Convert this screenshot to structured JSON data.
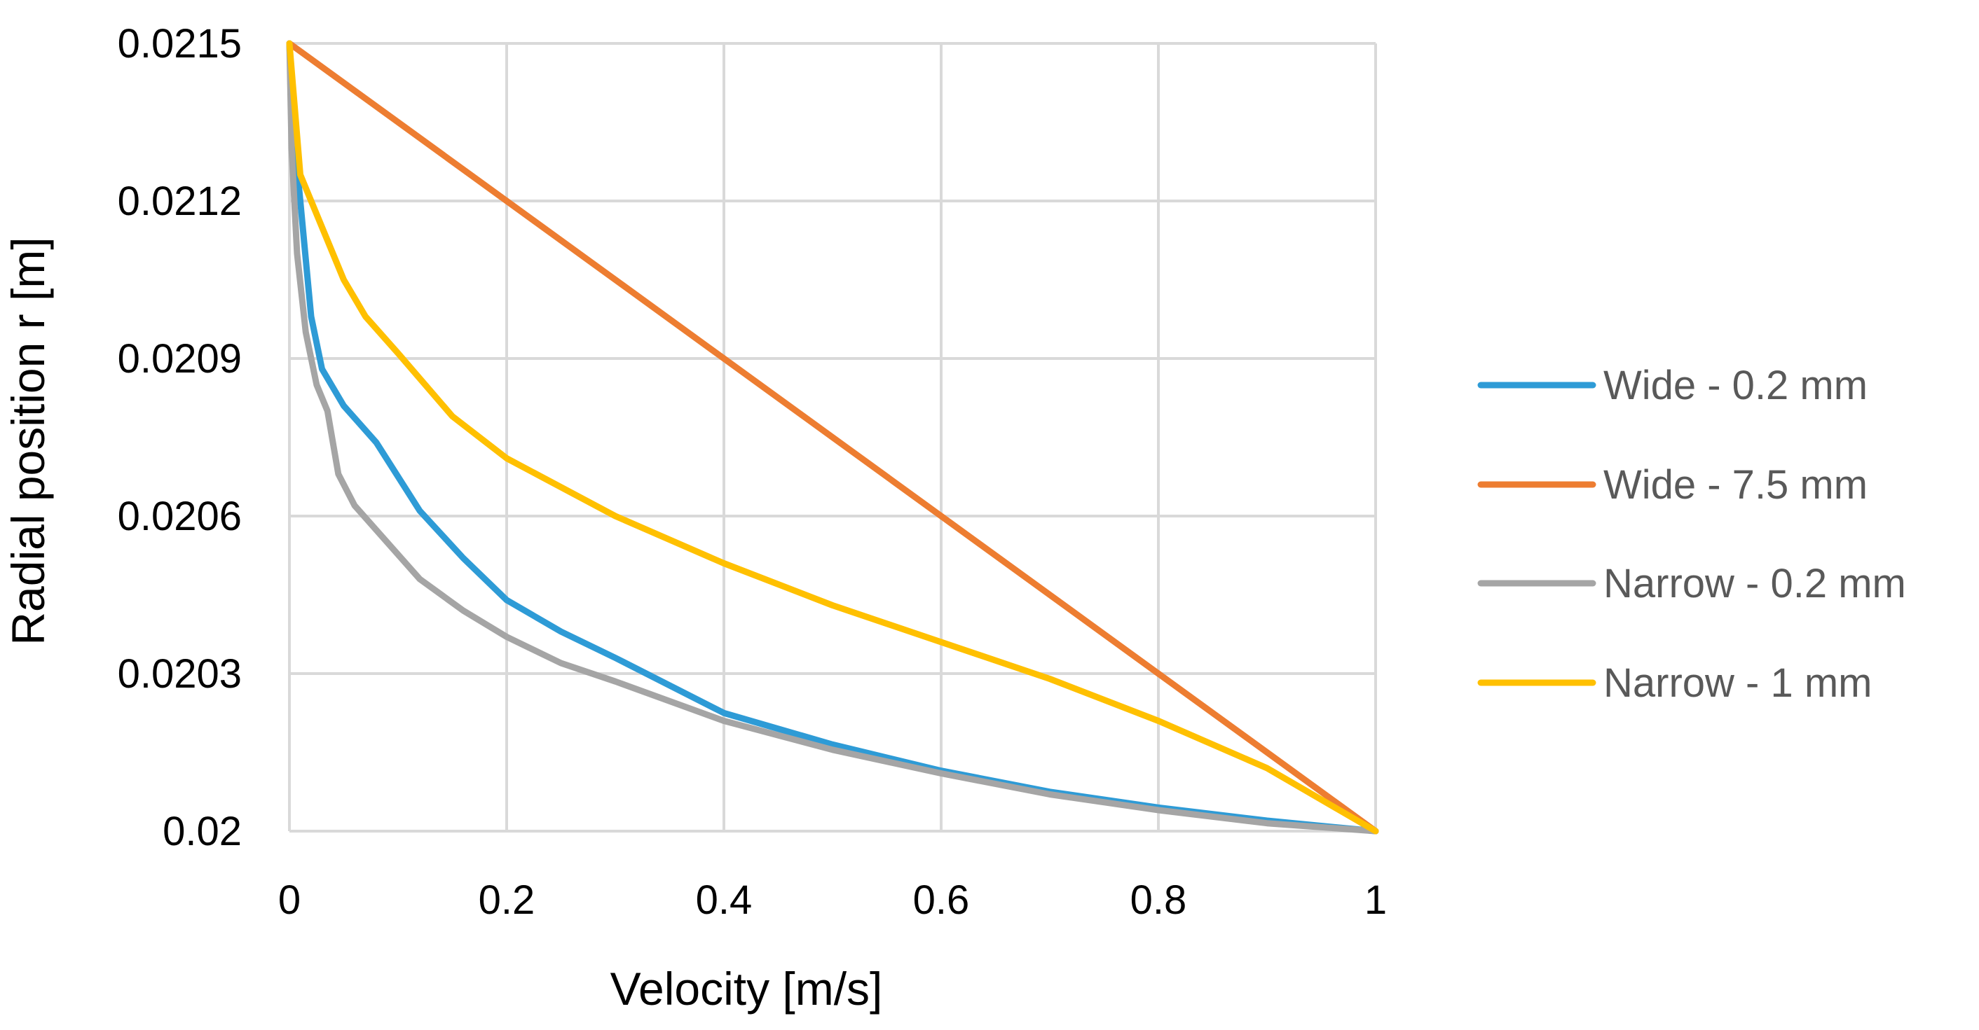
{
  "chart_data": {
    "type": "line",
    "title": "",
    "xlabel": "Velocity [m/s]",
    "ylabel": "Radial position r [m]",
    "xlim": [
      0,
      1
    ],
    "ylim": [
      0.02,
      0.0215
    ],
    "x_ticks": [
      0,
      0.2,
      0.4,
      0.6,
      0.8,
      1
    ],
    "y_ticks": [
      0.02,
      0.0203,
      0.0206,
      0.0209,
      0.0212,
      0.0215
    ],
    "x_tick_labels": [
      "0",
      "0.2",
      "0.4",
      "0.6",
      "0.8",
      "1"
    ],
    "y_tick_labels": [
      "0.02",
      "0.0203",
      "0.0206",
      "0.0209",
      "0.0212",
      "0.0215"
    ],
    "grid": true,
    "legend_position": "right",
    "series": [
      {
        "name": "Wide - 0.2 mm",
        "color": "#2e9bd6",
        "points": [
          [
            0,
            0.0215
          ],
          [
            0.003,
            0.02135
          ],
          [
            0.01,
            0.0212
          ],
          [
            0.02,
            0.02098
          ],
          [
            0.03,
            0.02088
          ],
          [
            0.05,
            0.02081
          ],
          [
            0.08,
            0.02074
          ],
          [
            0.12,
            0.02061
          ],
          [
            0.16,
            0.02052
          ],
          [
            0.2,
            0.02044
          ],
          [
            0.25,
            0.02038
          ],
          [
            0.3,
            0.02033
          ],
          [
            0.4,
            0.020225
          ],
          [
            0.5,
            0.020165
          ],
          [
            0.6,
            0.020115
          ],
          [
            0.7,
            0.020075
          ],
          [
            0.8,
            0.020045
          ],
          [
            0.9,
            0.02002
          ],
          [
            1,
            0.02
          ]
        ]
      },
      {
        "name": "Wide - 7.5 mm",
        "color": "#ed7d31",
        "points": [
          [
            0,
            0.0215
          ],
          [
            1,
            0.02
          ]
        ]
      },
      {
        "name": "Narrow - 0.2 mm",
        "color": "#a5a5a5",
        "points": [
          [
            0,
            0.0215
          ],
          [
            0.002,
            0.0213
          ],
          [
            0.007,
            0.0211
          ],
          [
            0.015,
            0.02095
          ],
          [
            0.025,
            0.02085
          ],
          [
            0.035,
            0.0208
          ],
          [
            0.045,
            0.02068
          ],
          [
            0.06,
            0.02062
          ],
          [
            0.09,
            0.02055
          ],
          [
            0.12,
            0.02048
          ],
          [
            0.16,
            0.02042
          ],
          [
            0.2,
            0.02037
          ],
          [
            0.25,
            0.02032
          ],
          [
            0.3,
            0.020285
          ],
          [
            0.4,
            0.02021
          ],
          [
            0.5,
            0.020155
          ],
          [
            0.6,
            0.02011
          ],
          [
            0.7,
            0.02007
          ],
          [
            0.8,
            0.02004
          ],
          [
            0.9,
            0.020015
          ],
          [
            1,
            0.02
          ]
        ]
      },
      {
        "name": "Narrow - 1 mm",
        "color": "#ffc000",
        "points": [
          [
            0,
            0.0215
          ],
          [
            0.01,
            0.02125
          ],
          [
            0.03,
            0.02115
          ],
          [
            0.05,
            0.02105
          ],
          [
            0.07,
            0.02098
          ],
          [
            0.1,
            0.02091
          ],
          [
            0.15,
            0.02079
          ],
          [
            0.2,
            0.02071
          ],
          [
            0.3,
            0.0206
          ],
          [
            0.4,
            0.02051
          ],
          [
            0.5,
            0.02043
          ],
          [
            0.6,
            0.02036
          ],
          [
            0.7,
            0.02029
          ],
          [
            0.8,
            0.02021
          ],
          [
            0.9,
            0.02012
          ],
          [
            1,
            0.02
          ]
        ]
      }
    ]
  }
}
